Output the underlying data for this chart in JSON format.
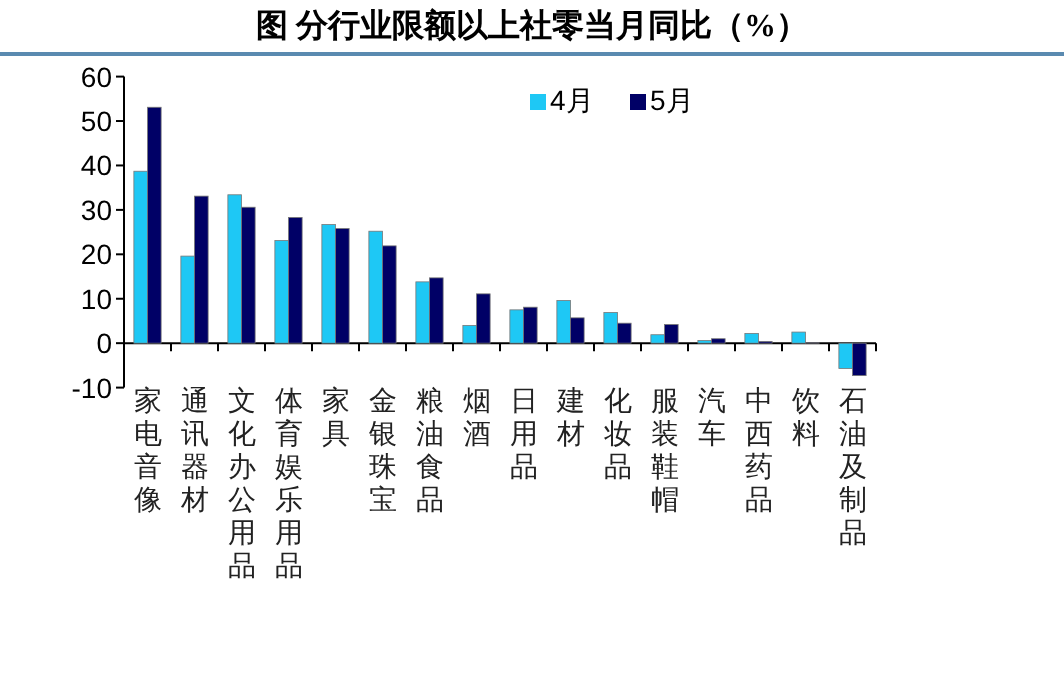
{
  "chart_data": {
    "type": "bar",
    "title": "图    分行业限额以上社零当月同比（%）",
    "categories": [
      "家电音像",
      "通讯器材",
      "文化办公用品",
      "体育娱乐用品",
      "家具",
      "金银珠宝",
      "粮油食品",
      "烟酒",
      "日用品",
      "建材",
      "化妆品",
      "服装鞋帽",
      "汽车",
      "中西药品",
      "饮料",
      "石油及制品"
    ],
    "series": [
      {
        "name": "4月",
        "color": "#1ec8f5",
        "values": [
          38.7,
          19.6,
          33.4,
          23.1,
          26.7,
          25.2,
          13.8,
          4.0,
          7.5,
          9.6,
          6.9,
          1.9,
          0.6,
          2.2,
          2.5,
          -5.7
        ]
      },
      {
        "name": "5月",
        "color": "#000066",
        "values": [
          53.1,
          33.1,
          30.6,
          28.3,
          25.8,
          21.9,
          14.7,
          11.1,
          8.1,
          5.7,
          4.5,
          4.2,
          1.0,
          0.4,
          0.1,
          -7.3
        ]
      }
    ],
    "ylim": [
      -10,
      60
    ],
    "yticks": [
      -10,
      0,
      10,
      20,
      30,
      40,
      50,
      60
    ],
    "grid": false,
    "legend": "top right"
  }
}
